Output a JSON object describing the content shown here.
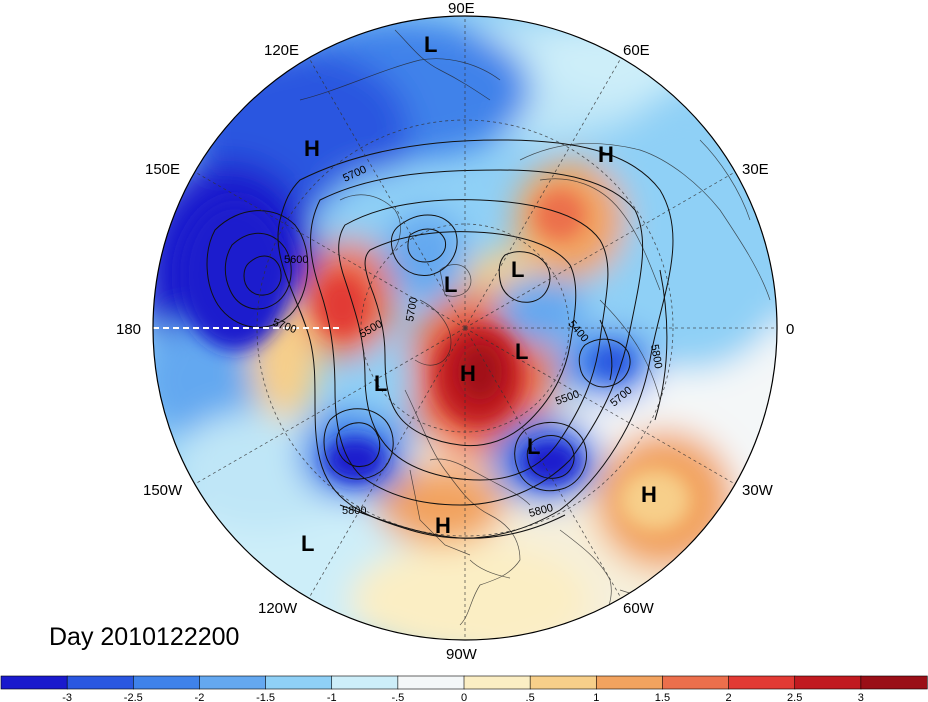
{
  "map": {
    "projection": "polar-stereographic",
    "hemisphere": "northern",
    "longitude_labels": [
      {
        "text": "90E",
        "lon": 90
      },
      {
        "text": "60E",
        "lon": 60
      },
      {
        "text": "30E",
        "lon": 30
      },
      {
        "text": "0",
        "lon": 0
      },
      {
        "text": "30W",
        "lon": -30
      },
      {
        "text": "60W",
        "lon": -60
      },
      {
        "text": "90W",
        "lon": -90
      },
      {
        "text": "120W",
        "lon": -120
      },
      {
        "text": "150W",
        "lon": -150
      },
      {
        "text": "180",
        "lon": 180
      },
      {
        "text": "150E",
        "lon": 150
      },
      {
        "text": "120E",
        "lon": 120
      }
    ],
    "contour_labels": [
      "5700",
      "5600",
      "5700",
      "5500",
      "5700",
      "5400",
      "5800",
      "5500",
      "5700",
      "5800",
      "5800"
    ],
    "pressure_systems": [
      {
        "label": "L"
      },
      {
        "label": "H"
      },
      {
        "label": "H"
      },
      {
        "label": "L"
      },
      {
        "label": "L"
      },
      {
        "label": "L"
      },
      {
        "label": "H"
      },
      {
        "label": "L"
      },
      {
        "label": "L"
      },
      {
        "label": "H"
      },
      {
        "label": "H"
      },
      {
        "label": "L"
      }
    ]
  },
  "title": "Day 2010122200",
  "colorbar": {
    "colors": [
      "#1a1acd",
      "#2a57e0",
      "#3f82ea",
      "#64a8f0",
      "#8fd0f6",
      "#cdeef9",
      "#f4f7f8",
      "#fbeec4",
      "#f7cf8a",
      "#f2a35f",
      "#ec6f4c",
      "#e23a34",
      "#c11a20",
      "#9a0f17"
    ],
    "tick_labels": [
      "-3",
      "-2.5",
      "-2",
      "-1.5",
      "-1",
      "-.5",
      "0",
      ".5",
      "1",
      "1.5",
      "2",
      "2.5",
      "3"
    ]
  }
}
